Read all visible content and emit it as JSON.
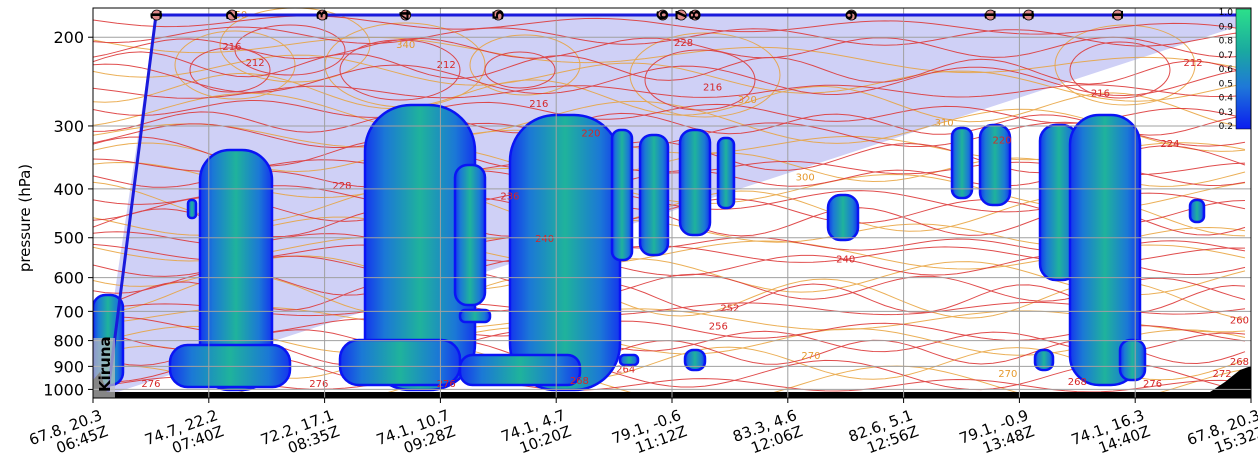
{
  "chart_data": {
    "type": "heatmap",
    "ylabel": "pressure (hPa)",
    "y_scale": "log-pressure",
    "y_ticks": [
      200,
      300,
      400,
      500,
      600,
      700,
      800,
      900,
      1000
    ],
    "ylim": [
      1040,
      175
    ],
    "grid": true,
    "x_ticks": [
      {
        "pos": "67.8, 20.3",
        "time": "06:45Z"
      },
      {
        "pos": "74.7, 22.2",
        "time": "07:40Z"
      },
      {
        "pos": "72.2, 17.1",
        "time": "08:35Z"
      },
      {
        "pos": "74.1, 10.7",
        "time": "09:28Z"
      },
      {
        "pos": "74.1, 4.7",
        "time": "10:20Z"
      },
      {
        "pos": "79.1, -0.6",
        "time": "11:12Z"
      },
      {
        "pos": "83.3, 4.6",
        "time": "12:06Z"
      },
      {
        "pos": "82.6, 5.1",
        "time": "12:56Z"
      },
      {
        "pos": "79.1, -0.9",
        "time": "13:48Z"
      },
      {
        "pos": "74.1, 16.3",
        "time": "14:40Z"
      },
      {
        "pos": "67.8, 20.3",
        "time": "15:32Z"
      }
    ],
    "location_label": "Kiruna",
    "waypoints": [
      {
        "label": "1",
        "x": 0.55
      },
      {
        "label": "2",
        "x": 1.2
      },
      {
        "label": "3",
        "x": 1.98
      },
      {
        "label": "4",
        "x": 2.7
      },
      {
        "label": "5",
        "x": 3.5
      },
      {
        "label": "6",
        "x": 4.92
      },
      {
        "label": "7",
        "x": 5.08
      },
      {
        "label": "8",
        "x": 5.2
      },
      {
        "label": "9",
        "x": 6.55
      },
      {
        "label": "1",
        "x": 7.75
      },
      {
        "label": "1",
        "x": 8.08
      },
      {
        "label": "1",
        "x": 8.85
      }
    ],
    "colorbar": {
      "min": 0.2,
      "max": 1.0,
      "ticks": [
        "1.0",
        "0.9",
        "0.8",
        "0.7",
        "0.6",
        "0.5",
        "0.4",
        "0.3",
        "0.2"
      ]
    },
    "temperature_labels": [
      {
        "text": "216",
        "x": 1.2,
        "p": 212,
        "color": "#d62728"
      },
      {
        "text": "212",
        "x": 1.4,
        "p": 228,
        "color": "#d62728"
      },
      {
        "text": "212",
        "x": 3.05,
        "p": 230,
        "color": "#d62728"
      },
      {
        "text": "216",
        "x": 3.85,
        "p": 275,
        "color": "#d62728"
      },
      {
        "text": "220",
        "x": 4.3,
        "p": 315,
        "color": "#d62728"
      },
      {
        "text": "228",
        "x": 5.1,
        "p": 208,
        "color": "#d62728"
      },
      {
        "text": "216",
        "x": 5.35,
        "p": 255,
        "color": "#d62728"
      },
      {
        "text": "228",
        "x": 2.15,
        "p": 400,
        "color": "#d62728"
      },
      {
        "text": "236",
        "x": 3.6,
        "p": 420,
        "color": "#d62728"
      },
      {
        "text": "240",
        "x": 3.9,
        "p": 510,
        "color": "#d62728"
      },
      {
        "text": "240",
        "x": 6.5,
        "p": 560,
        "color": "#d62728"
      },
      {
        "text": "252",
        "x": 5.5,
        "p": 700,
        "color": "#d62728"
      },
      {
        "text": "256",
        "x": 5.4,
        "p": 760,
        "color": "#d62728"
      },
      {
        "text": "260",
        "x": 9.9,
        "p": 740,
        "color": "#d62728"
      },
      {
        "text": "264",
        "x": 4.6,
        "p": 925,
        "color": "#d62728"
      },
      {
        "text": "268",
        "x": 4.2,
        "p": 975,
        "color": "#d62728"
      },
      {
        "text": "276",
        "x": 0.5,
        "p": 990,
        "color": "#d62728"
      },
      {
        "text": "276",
        "x": 1.95,
        "p": 990,
        "color": "#d62728"
      },
      {
        "text": "276",
        "x": 3.05,
        "p": 990,
        "color": "#d62728"
      },
      {
        "text": "268",
        "x": 8.5,
        "p": 980,
        "color": "#d62728"
      },
      {
        "text": "276",
        "x": 9.15,
        "p": 990,
        "color": "#d62728"
      },
      {
        "text": "272",
        "x": 9.75,
        "p": 945,
        "color": "#d62728"
      },
      {
        "text": "268",
        "x": 9.9,
        "p": 895,
        "color": "#d62728"
      },
      {
        "text": "216",
        "x": 8.7,
        "p": 262,
        "color": "#d62728"
      },
      {
        "text": "212",
        "x": 9.5,
        "p": 228,
        "color": "#d62728"
      },
      {
        "text": "220",
        "x": 7.85,
        "p": 325,
        "color": "#d62728"
      },
      {
        "text": "224",
        "x": 9.3,
        "p": 330,
        "color": "#d62728"
      },
      {
        "text": "350",
        "x": 1.25,
        "p": 183,
        "color": "#e69a2e"
      },
      {
        "text": "340",
        "x": 2.7,
        "p": 210,
        "color": "#e69a2e"
      },
      {
        "text": "320",
        "x": 5.65,
        "p": 270,
        "color": "#e69a2e"
      },
      {
        "text": "300",
        "x": 6.15,
        "p": 385,
        "color": "#e69a2e"
      },
      {
        "text": "310",
        "x": 7.35,
        "p": 300,
        "color": "#e69a2e"
      },
      {
        "text": "270",
        "x": 6.2,
        "p": 870,
        "color": "#e69a2e"
      },
      {
        "text": "270",
        "x": 7.9,
        "p": 945,
        "color": "#e69a2e"
      }
    ]
  }
}
